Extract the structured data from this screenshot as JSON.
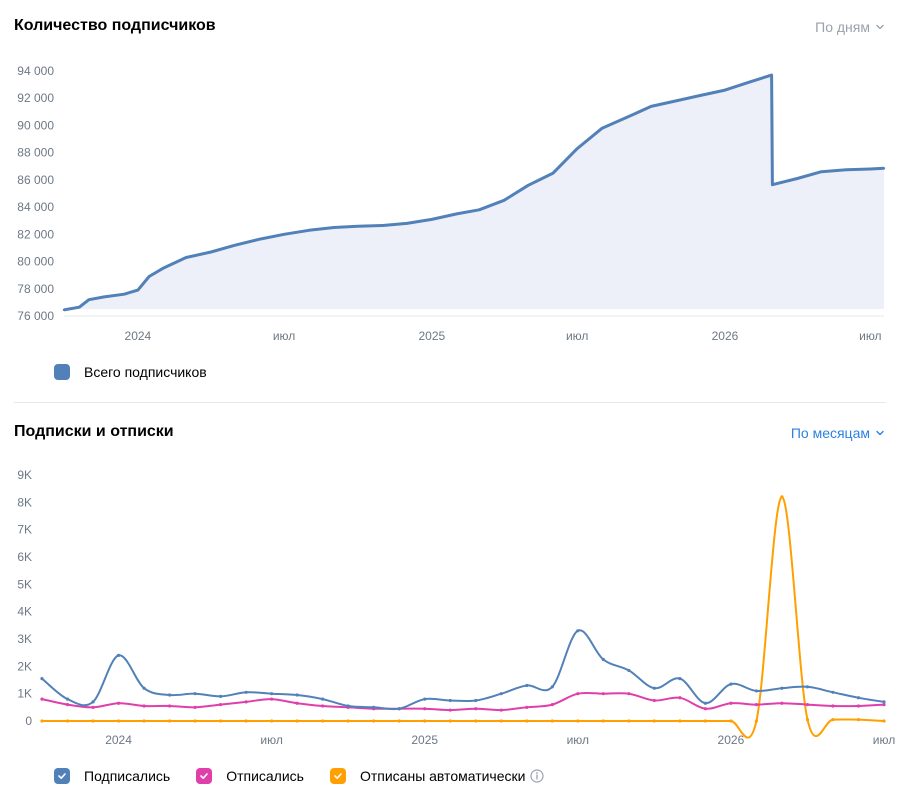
{
  "subscribers": {
    "title": "Количество подписчиков",
    "period": "По дням",
    "legend": "Всего подписчиков"
  },
  "subs_unsubs": {
    "title": "Подписки и отписки",
    "period": "По месяцам",
    "legend": [
      "Подписались",
      "Отписались",
      "Отписаны автоматически"
    ]
  },
  "colors": {
    "total": "#5181b8",
    "subscribed": "#5181b8",
    "unsubscribed": "#e03fab",
    "auto": "#ffa000",
    "period_link_1": "#99a2ad",
    "period_link_2": "#2d81e0"
  },
  "chart_data": [
    {
      "type": "area",
      "series": [
        {
          "name": "Всего подписчиков"
        }
      ],
      "x_ticks": [
        "2024",
        "июл",
        "2025",
        "июл",
        "2026",
        "июл"
      ],
      "y_ticks": [
        "76 000",
        "78 000",
        "80 000",
        "82 000",
        "84 000",
        "86 000",
        "88 000",
        "90 000",
        "92 000",
        "94 000"
      ],
      "ylim": [
        76000,
        94000
      ],
      "x_start": "2023-10-01",
      "points": [
        [
          "2023-10-01",
          76450
        ],
        [
          "2023-10-20",
          76650
        ],
        [
          "2023-11-01",
          77200
        ],
        [
          "2023-11-20",
          77400
        ],
        [
          "2023-12-15",
          77600
        ],
        [
          "2024-01-01",
          77900
        ],
        [
          "2024-01-15",
          78900
        ],
        [
          "2024-02-01",
          79500
        ],
        [
          "2024-03-01",
          80300
        ],
        [
          "2024-04-01",
          80700
        ],
        [
          "2024-05-01",
          81200
        ],
        [
          "2024-06-01",
          81650
        ],
        [
          "2024-07-01",
          82000
        ],
        [
          "2024-08-01",
          82300
        ],
        [
          "2024-09-01",
          82500
        ],
        [
          "2024-10-01",
          82600
        ],
        [
          "2024-11-01",
          82650
        ],
        [
          "2024-12-01",
          82800
        ],
        [
          "2025-01-01",
          83100
        ],
        [
          "2025-02-01",
          83500
        ],
        [
          "2025-03-01",
          83800
        ],
        [
          "2025-04-01",
          84500
        ],
        [
          "2025-05-01",
          85600
        ],
        [
          "2025-06-01",
          86500
        ],
        [
          "2025-07-01",
          88300
        ],
        [
          "2025-08-01",
          89800
        ],
        [
          "2025-09-01",
          90600
        ],
        [
          "2025-10-01",
          91400
        ],
        [
          "2025-11-01",
          91800
        ],
        [
          "2025-12-01",
          92200
        ],
        [
          "2026-01-01",
          92600
        ],
        [
          "2026-02-01",
          93200
        ],
        [
          "2026-02-28",
          93700
        ],
        [
          "2026-03-01",
          85650
        ],
        [
          "2026-04-01",
          86100
        ],
        [
          "2026-05-01",
          86600
        ],
        [
          "2026-06-01",
          86750
        ],
        [
          "2026-07-01",
          86800
        ],
        [
          "2026-07-18",
          86850
        ]
      ]
    },
    {
      "type": "line",
      "x_ticks": [
        "2024",
        "июл",
        "2025",
        "июл",
        "2026",
        "июл"
      ],
      "y_ticks": [
        "0",
        "1K",
        "2K",
        "3K",
        "4K",
        "5K",
        "6K",
        "7K",
        "8K",
        "9K"
      ],
      "ylim": [
        0,
        9000
      ],
      "x": [
        "2023-10",
        "2023-11",
        "2023-12",
        "2024-01",
        "2024-02",
        "2024-03",
        "2024-04",
        "2024-05",
        "2024-06",
        "2024-07",
        "2024-08",
        "2024-09",
        "2024-10",
        "2024-11",
        "2024-12",
        "2025-01",
        "2025-02",
        "2025-03",
        "2025-04",
        "2025-05",
        "2025-06",
        "2025-07",
        "2025-08",
        "2025-09",
        "2025-10",
        "2025-11",
        "2025-12",
        "2026-01",
        "2026-02",
        "2026-03",
        "2026-04",
        "2026-05",
        "2026-06",
        "2026-07"
      ],
      "series": [
        {
          "name": "Подписались",
          "values": [
            1550,
            800,
            700,
            2400,
            1200,
            950,
            1000,
            900,
            1050,
            1000,
            950,
            800,
            550,
            500,
            450,
            800,
            750,
            750,
            1000,
            1300,
            1250,
            3300,
            2250,
            1850,
            1200,
            1550,
            650,
            1350,
            1100,
            1200,
            1250,
            1050,
            850,
            700
          ]
        },
        {
          "name": "Отписались",
          "values": [
            800,
            600,
            500,
            650,
            550,
            550,
            500,
            600,
            700,
            800,
            650,
            550,
            500,
            450,
            450,
            450,
            400,
            450,
            400,
            500,
            600,
            1000,
            1000,
            1000,
            750,
            850,
            450,
            650,
            600,
            650,
            600,
            550,
            550,
            600
          ]
        },
        {
          "name": "Отписаны автоматически",
          "values": [
            0,
            0,
            0,
            0,
            0,
            0,
            0,
            0,
            0,
            0,
            0,
            0,
            0,
            0,
            0,
            0,
            0,
            0,
            0,
            0,
            0,
            0,
            0,
            0,
            0,
            0,
            0,
            0,
            0,
            8200,
            50,
            50,
            50,
            0
          ]
        }
      ]
    }
  ]
}
